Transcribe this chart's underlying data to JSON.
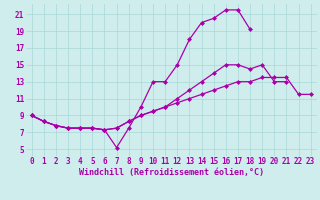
{
  "bg_color": "#d0eded",
  "grid_color": "#a8d8d8",
  "line_color": "#aa00aa",
  "marker": "D",
  "marker_size": 2.0,
  "line_width": 0.9,
  "xlabel": "Windchill (Refroidissement éolien,°C)",
  "xlabel_fontsize": 6.0,
  "yticks": [
    5,
    7,
    9,
    11,
    13,
    15,
    17,
    19,
    21
  ],
  "xticks": [
    0,
    1,
    2,
    3,
    4,
    5,
    6,
    7,
    8,
    9,
    10,
    11,
    12,
    13,
    14,
    15,
    16,
    17,
    18,
    19,
    20,
    21,
    22,
    23
  ],
  "xlim": [
    -0.5,
    23.5
  ],
  "ylim": [
    4.2,
    22.2
  ],
  "curve1_x": [
    0,
    1,
    2,
    3,
    4,
    5,
    6,
    7,
    8,
    9,
    10,
    11,
    12,
    13,
    14,
    15,
    16,
    17,
    18,
    19,
    20,
    21,
    22,
    23
  ],
  "curve1_y": [
    9.0,
    8.3,
    7.8,
    7.5,
    7.5,
    7.5,
    7.3,
    5.2,
    7.5,
    10.0,
    13.0,
    13.0,
    15.0,
    18.0,
    20.0,
    20.5,
    21.5,
    21.5,
    19.2,
    null,
    null,
    null,
    null,
    null
  ],
  "curve2_x": [
    0,
    1,
    2,
    3,
    4,
    5,
    6,
    7,
    8,
    9,
    10,
    11,
    12,
    13,
    14,
    15,
    16,
    17,
    18,
    19,
    20,
    21,
    22,
    23
  ],
  "curve2_y": [
    9.0,
    8.3,
    7.8,
    7.5,
    7.5,
    7.5,
    7.3,
    7.5,
    8.3,
    9.0,
    9.5,
    10.0,
    11.0,
    12.0,
    13.0,
    14.0,
    15.0,
    15.0,
    14.5,
    15.0,
    13.0,
    13.0,
    null,
    null
  ],
  "curve3_x": [
    0,
    1,
    2,
    3,
    4,
    5,
    6,
    7,
    8,
    9,
    10,
    11,
    12,
    13,
    14,
    15,
    16,
    17,
    18,
    19,
    20,
    21,
    22,
    23
  ],
  "curve3_y": [
    9.0,
    8.3,
    7.8,
    7.5,
    7.5,
    7.5,
    7.3,
    7.5,
    8.3,
    9.0,
    9.5,
    10.0,
    10.5,
    11.0,
    11.5,
    12.0,
    12.5,
    13.0,
    13.0,
    13.5,
    13.5,
    13.5,
    11.5,
    11.5
  ]
}
